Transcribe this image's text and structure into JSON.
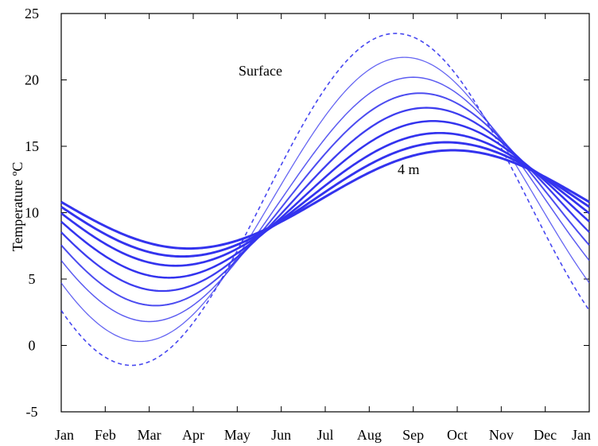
{
  "chart_data": {
    "type": "line",
    "title": "",
    "xlabel": "",
    "ylabel": "Temperature ºC",
    "ylim": [
      -5,
      25
    ],
    "yticks": [
      -5,
      0,
      5,
      10,
      15,
      20,
      25
    ],
    "xticks": [
      "Jan",
      "Feb",
      "Mar",
      "Apr",
      "May",
      "Jun",
      "Jul",
      "Aug",
      "Sep",
      "Oct",
      "Nov",
      "Dec",
      "Jan"
    ],
    "grid": false,
    "annotations": [
      {
        "text": "Surface"
      },
      {
        "text": "4 m"
      }
    ],
    "line_color": "#3333ee",
    "series": [
      {
        "style": "dashed",
        "mean": 11,
        "amplitude": 12.5,
        "peak_month": 7.6
      },
      {
        "style": "solid",
        "mean": 11,
        "amplitude": 10.7,
        "peak_month": 7.8
      },
      {
        "style": "solid",
        "mean": 11,
        "amplitude": 9.2,
        "peak_month": 8.0
      },
      {
        "style": "solid",
        "mean": 11,
        "amplitude": 8.0,
        "peak_month": 8.15
      },
      {
        "style": "solid",
        "mean": 11,
        "amplitude": 6.9,
        "peak_month": 8.3
      },
      {
        "style": "solid",
        "mean": 11,
        "amplitude": 5.9,
        "peak_month": 8.45
      },
      {
        "style": "solid",
        "mean": 11,
        "amplitude": 5.0,
        "peak_month": 8.6
      },
      {
        "style": "solid",
        "mean": 11,
        "amplitude": 4.3,
        "peak_month": 8.75
      },
      {
        "style": "solid",
        "mean": 11,
        "amplitude": 3.7,
        "peak_month": 8.9
      }
    ]
  }
}
